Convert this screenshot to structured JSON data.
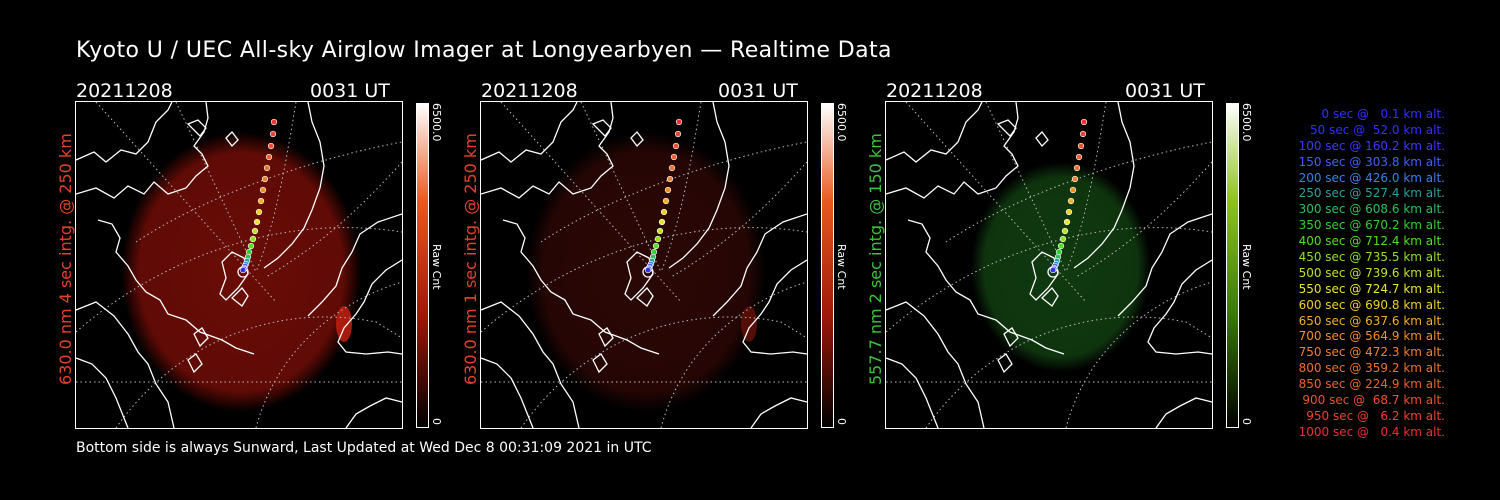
{
  "title": "Kyoto U / UEC All-sky Airglow Imager at Longyearbyen — Realtime Data",
  "footer": "Bottom side is always Sunward, Last Updated at Wed Dec  8 00:31:09 2021 in UTC",
  "panels": [
    {
      "date": "20211208",
      "time": "0031 UT",
      "ylabel": "630.0 nm 4 sec intg. @ 250 km",
      "ylabel_color": "#e8412a",
      "cbar_max": "6500.0",
      "cbar_min": "0",
      "cbar_unit": "Raw Cnt",
      "glow": "#6a0c06",
      "cbar_colors": [
        "#ffffff",
        "#e85a20",
        "#a01808",
        "#000000"
      ]
    },
    {
      "date": "20211208",
      "time": "0031 UT",
      "ylabel": "630.0 nm 1 sec intg. @ 250 km",
      "ylabel_color": "#e8412a",
      "cbar_max": "6500.0",
      "cbar_min": "0",
      "cbar_unit": "Raw Cnt",
      "glow": "#2a0705",
      "cbar_colors": [
        "#ffffff",
        "#e85a20",
        "#a01808",
        "#000000"
      ]
    },
    {
      "date": "20211208",
      "time": "0031 UT",
      "ylabel": "557.7 nm 2 sec intg. @ 150 km",
      "ylabel_color": "#3ac43a",
      "cbar_max": "6500.0",
      "cbar_min": "0",
      "cbar_unit": "Raw Cnt",
      "glow": "#103a10",
      "cbar_colors": [
        "#ffffff",
        "#8ec21a",
        "#3a7a08",
        "#000000"
      ]
    }
  ],
  "legend": [
    {
      "text": "0 sec @   0.1 km alt.",
      "color": "#3030ff"
    },
    {
      "text": "50 sec @  52.0 km alt.",
      "color": "#3030ff"
    },
    {
      "text": "100 sec @ 160.2 km alt.",
      "color": "#3a3aff"
    },
    {
      "text": "150 sec @ 303.8 km alt.",
      "color": "#4060ff"
    },
    {
      "text": "200 sec @ 426.0 km alt.",
      "color": "#3a80e8"
    },
    {
      "text": "250 sec @ 527.4 km alt.",
      "color": "#2aa0a0"
    },
    {
      "text": "300 sec @ 608.6 km alt.",
      "color": "#2ac060"
    },
    {
      "text": "350 sec @ 670.2 km alt.",
      "color": "#30d030"
    },
    {
      "text": "400 sec @ 712.4 km alt.",
      "color": "#50e020"
    },
    {
      "text": "450 sec @ 735.5 km alt.",
      "color": "#90e020"
    },
    {
      "text": "500 sec @ 739.6 km alt.",
      "color": "#c0e020"
    },
    {
      "text": "550 sec @ 724.7 km alt.",
      "color": "#e8e820"
    },
    {
      "text": "600 sec @ 690.8 km alt.",
      "color": "#f0d020"
    },
    {
      "text": "650 sec @ 637.6 km alt.",
      "color": "#f0b020"
    },
    {
      "text": "700 sec @ 564.9 km alt.",
      "color": "#f09020"
    },
    {
      "text": "750 sec @ 472.3 km alt.",
      "color": "#f08030"
    },
    {
      "text": "800 sec @ 359.2 km alt.",
      "color": "#f07030"
    },
    {
      "text": "850 sec @ 224.9 km alt.",
      "color": "#f06030"
    },
    {
      "text": "900 sec @  68.7 km alt.",
      "color": "#f05030"
    },
    {
      "text": "950 sec @   6.2 km alt.",
      "color": "#f04030"
    },
    {
      "text": "1000 sec @   0.4 km alt.",
      "color": "#f03030"
    }
  ]
}
